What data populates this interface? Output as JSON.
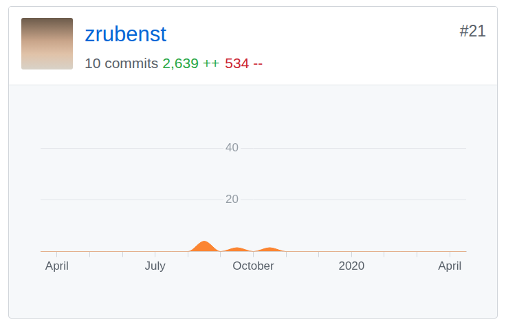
{
  "header": {
    "user": "zrubenst",
    "rank": "#21",
    "commits": "10 commits",
    "additions": "2,639 ++",
    "deletions": "534 --"
  },
  "chart_data": {
    "type": "area",
    "categories": [
      null,
      "April",
      null,
      null,
      null,
      null,
      null,
      "July",
      null,
      null,
      null,
      null,
      null,
      "October",
      null,
      null,
      null,
      null,
      null,
      "2020",
      null,
      null,
      null,
      null,
      null,
      "April",
      null
    ],
    "values": [
      0,
      0,
      0,
      0,
      0,
      0,
      0,
      0,
      0,
      0,
      4,
      0,
      1.5,
      0,
      1.5,
      0,
      0,
      0,
      0,
      0,
      0,
      0,
      0,
      0,
      0,
      0,
      0
    ],
    "color": "#fb8532",
    "ylim": [
      0,
      40
    ],
    "yticks": [
      20,
      40
    ],
    "grid": true
  }
}
